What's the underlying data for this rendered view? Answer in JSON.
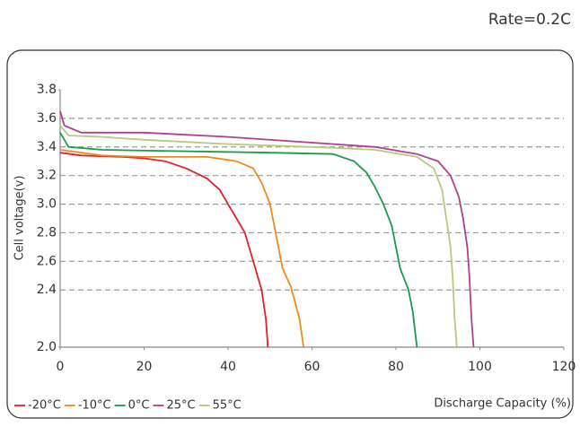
{
  "chart_data": {
    "type": "line",
    "subtitle": "Rate=0.2C",
    "xlabel": "Discharge Capacity (%)",
    "ylabel": "Cell voltage(v)",
    "xlim": [
      0,
      120
    ],
    "xticks": [
      0,
      20,
      40,
      60,
      80,
      100,
      120
    ],
    "ylim": [
      2.0,
      3.8
    ],
    "yticks": [
      {
        "value": 2.0,
        "label": "2.0"
      },
      2.4,
      2.6,
      2.8,
      {
        "value": 3.0,
        "label": "3.0"
      },
      3.2,
      3.4,
      3.6,
      3.8
    ],
    "grid": true,
    "legend": "bottom-left",
    "series": [
      {
        "name": "-20°C",
        "color": "#e3202b",
        "x": [
          0,
          5,
          15,
          20,
          25,
          30,
          35,
          38,
          40,
          42,
          44,
          45,
          46,
          47,
          48,
          49,
          49.5
        ],
        "values": [
          3.36,
          3.34,
          3.33,
          3.32,
          3.3,
          3.25,
          3.18,
          3.1,
          3.0,
          2.9,
          2.8,
          2.7,
          2.6,
          2.5,
          2.4,
          2.2,
          2.0
        ]
      },
      {
        "name": "-10°C",
        "color": "#ef8a1f",
        "x": [
          0,
          10,
          20,
          35,
          42,
          46,
          48,
          50,
          51,
          52,
          53,
          55,
          57,
          58
        ],
        "values": [
          3.38,
          3.34,
          3.33,
          3.33,
          3.3,
          3.25,
          3.15,
          3.0,
          2.85,
          2.7,
          2.55,
          2.42,
          2.2,
          2.0
        ]
      },
      {
        "name": "0°C",
        "color": "#1b9a4b",
        "x": [
          0,
          2,
          10,
          30,
          50,
          65,
          70,
          73,
          75,
          77,
          79,
          80,
          81,
          83,
          84,
          85
        ],
        "values": [
          3.5,
          3.4,
          3.38,
          3.37,
          3.36,
          3.35,
          3.3,
          3.22,
          3.12,
          3.0,
          2.85,
          2.7,
          2.55,
          2.4,
          2.25,
          2.0
        ]
      },
      {
        "name": "25°C",
        "color": "#b0408f",
        "x": [
          0,
          1,
          5,
          20,
          40,
          60,
          75,
          85,
          90,
          93,
          95,
          96,
          97,
          97.5,
          98,
          98.5
        ],
        "values": [
          3.65,
          3.55,
          3.5,
          3.5,
          3.47,
          3.43,
          3.4,
          3.35,
          3.3,
          3.2,
          3.05,
          2.9,
          2.7,
          2.5,
          2.2,
          2.0
        ]
      },
      {
        "name": "55°C",
        "color": "#b7c97b",
        "x": [
          0,
          2,
          10,
          20,
          40,
          60,
          75,
          85,
          89,
          91,
          92,
          93,
          93.5,
          94,
          94.5
        ],
        "values": [
          3.55,
          3.48,
          3.47,
          3.45,
          3.42,
          3.4,
          3.38,
          3.33,
          3.25,
          3.1,
          2.9,
          2.7,
          2.5,
          2.2,
          2.0
        ]
      }
    ]
  }
}
